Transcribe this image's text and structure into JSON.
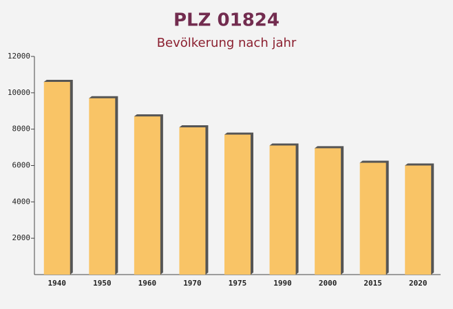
{
  "chart_data": {
    "type": "bar",
    "title": "PLZ 01824",
    "subtitle": "Bevölkerung nach jahr",
    "categories": [
      "1940",
      "1950",
      "1960",
      "1970",
      "1975",
      "1990",
      "2000",
      "2015",
      "2020"
    ],
    "values": [
      10600,
      9700,
      8700,
      8100,
      7700,
      7100,
      6950,
      6150,
      6000
    ],
    "color": "#f9c466",
    "ylim": [
      0,
      12000
    ],
    "yticks": [
      2000,
      4000,
      6000,
      8000,
      10000,
      12000
    ],
    "grid": false
  }
}
